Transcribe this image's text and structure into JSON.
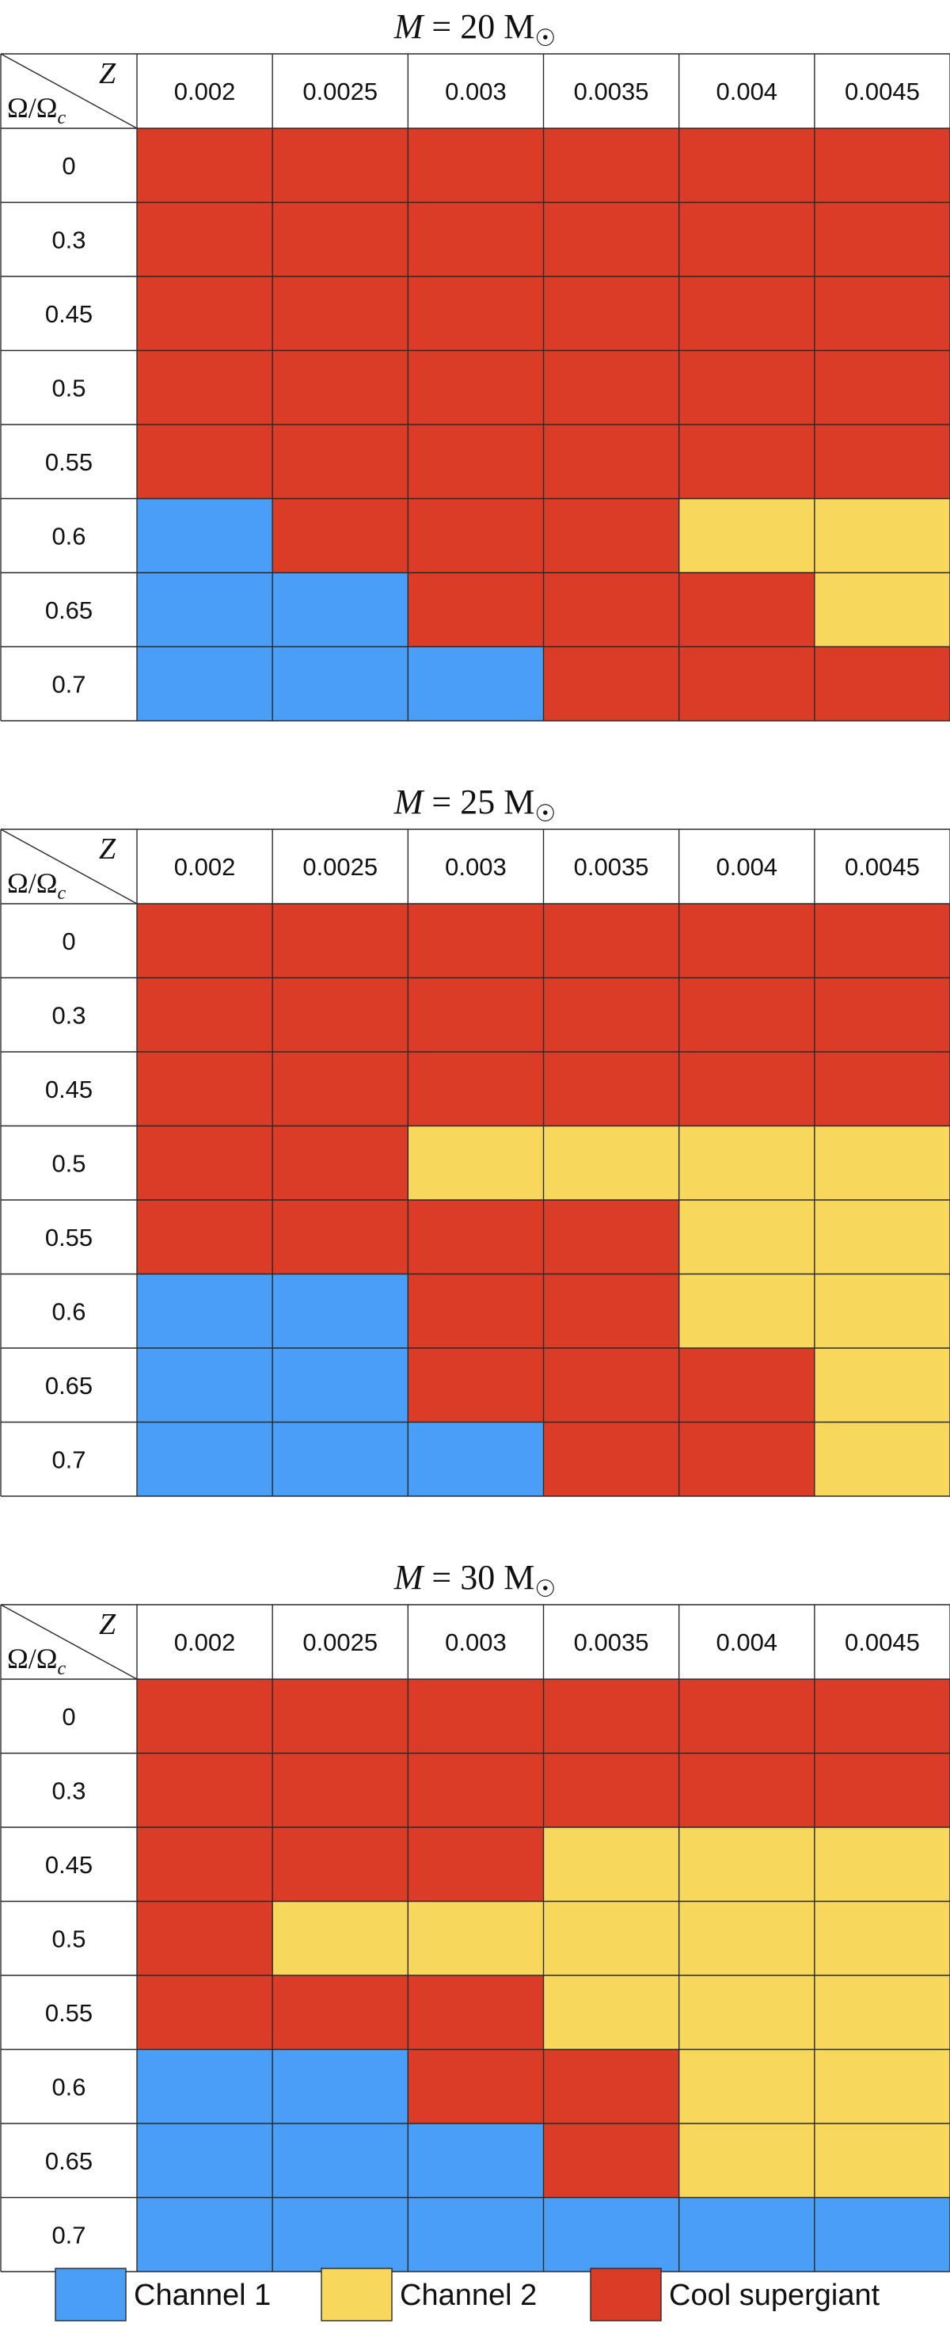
{
  "chart_data": {
    "type": "heatmap",
    "row_axis_label": "Ω/Ωc",
    "col_axis_label": "Z",
    "title_prefix": "M = ",
    "title_unit": "M☉",
    "columns": [
      "0.002",
      "0.0025",
      "0.003",
      "0.0035",
      "0.004",
      "0.0045"
    ],
    "rows": [
      "0",
      "0.3",
      "0.45",
      "0.5",
      "0.55",
      "0.6",
      "0.65",
      "0.7"
    ],
    "categories": {
      "B": {
        "label": "Channel 1",
        "color": "#4A9EF5"
      },
      "Y": {
        "label": "Channel 2",
        "color": "#F7D85C"
      },
      "R": {
        "label": "Cool supergiant",
        "color": "#DB3C27"
      }
    },
    "legend_order": [
      "B",
      "Y",
      "R"
    ],
    "panels": [
      {
        "mass": "20",
        "grid": [
          [
            "R",
            "R",
            "R",
            "R",
            "R",
            "R"
          ],
          [
            "R",
            "R",
            "R",
            "R",
            "R",
            "R"
          ],
          [
            "R",
            "R",
            "R",
            "R",
            "R",
            "R"
          ],
          [
            "R",
            "R",
            "R",
            "R",
            "R",
            "R"
          ],
          [
            "R",
            "R",
            "R",
            "R",
            "R",
            "R"
          ],
          [
            "B",
            "R",
            "R",
            "R",
            "Y",
            "Y"
          ],
          [
            "B",
            "B",
            "R",
            "R",
            "R",
            "Y"
          ],
          [
            "B",
            "B",
            "B",
            "R",
            "R",
            "R"
          ]
        ]
      },
      {
        "mass": "25",
        "grid": [
          [
            "R",
            "R",
            "R",
            "R",
            "R",
            "R"
          ],
          [
            "R",
            "R",
            "R",
            "R",
            "R",
            "R"
          ],
          [
            "R",
            "R",
            "R",
            "R",
            "R",
            "R"
          ],
          [
            "R",
            "R",
            "Y",
            "Y",
            "Y",
            "Y"
          ],
          [
            "R",
            "R",
            "R",
            "R",
            "Y",
            "Y"
          ],
          [
            "B",
            "B",
            "R",
            "R",
            "Y",
            "Y"
          ],
          [
            "B",
            "B",
            "R",
            "R",
            "R",
            "Y"
          ],
          [
            "B",
            "B",
            "B",
            "R",
            "R",
            "Y"
          ]
        ]
      },
      {
        "mass": "30",
        "grid": [
          [
            "R",
            "R",
            "R",
            "R",
            "R",
            "R"
          ],
          [
            "R",
            "R",
            "R",
            "R",
            "R",
            "R"
          ],
          [
            "R",
            "R",
            "R",
            "Y",
            "Y",
            "Y"
          ],
          [
            "R",
            "Y",
            "Y",
            "Y",
            "Y",
            "Y"
          ],
          [
            "R",
            "R",
            "R",
            "Y",
            "Y",
            "Y"
          ],
          [
            "B",
            "B",
            "R",
            "R",
            "Y",
            "Y"
          ],
          [
            "B",
            "B",
            "B",
            "R",
            "Y",
            "Y"
          ],
          [
            "B",
            "B",
            "B",
            "B",
            "B",
            "B"
          ]
        ]
      }
    ]
  }
}
